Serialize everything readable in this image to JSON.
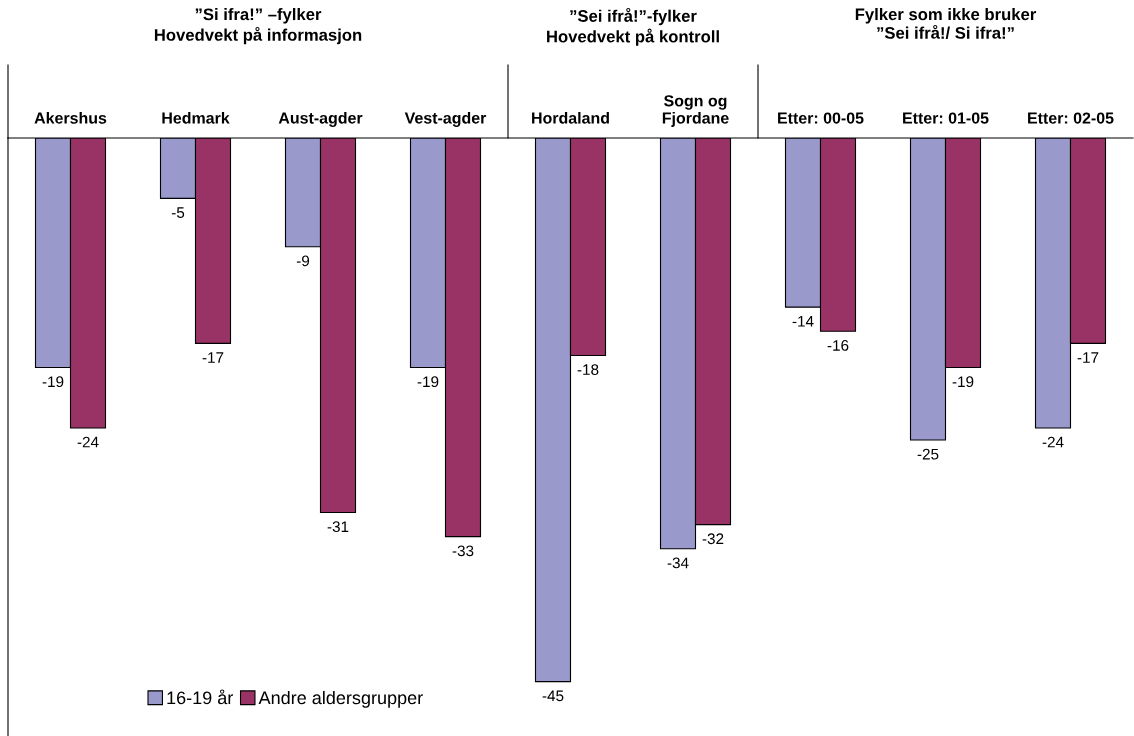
{
  "chart_data": {
    "type": "bar",
    "categories": [
      "Akershus",
      "Hedmark",
      "Aust-agder",
      "Vest-agder",
      "Hordaland",
      "Sogn og\nFjordane",
      "Etter: 00-05",
      "Etter: 01-05",
      "Etter: 02-05"
    ],
    "series": [
      {
        "name": "16-19 år",
        "color": "#9999cc",
        "values": [
          -19,
          -5,
          -9,
          -19,
          -45,
          -34,
          -14,
          -25,
          -24
        ]
      },
      {
        "name": "Andre aldersgrupper",
        "color": "#993366",
        "values": [
          -24,
          -17,
          -31,
          -33,
          -18,
          -32,
          -16,
          -19,
          -17
        ]
      }
    ],
    "annotations": [
      "”Si ifra!” –fylker\nHovedvekt på informasjon",
      "”Sei ifrå!”-fylker\nHovedvekt på kontroll",
      "Fylker som ikke bruker\n”Sei ifrå!/ Si ifra!”"
    ],
    "data_labels": true,
    "legend": "bottom left",
    "grid": false
  }
}
